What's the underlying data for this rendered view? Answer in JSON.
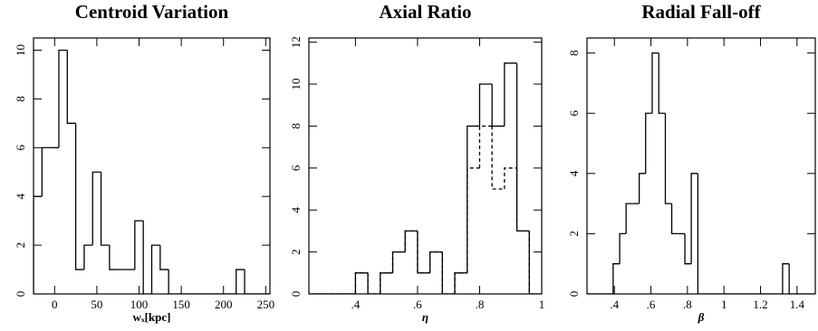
{
  "chart_data": [
    {
      "type": "histogram",
      "title": "Centroid Variation",
      "xlabel": "wₓ[kpc]",
      "xlim": [
        -25,
        255
      ],
      "ylim": [
        0,
        10.5
      ],
      "xticks": [
        0,
        50,
        100,
        150,
        200,
        250
      ],
      "yticks": [
        0,
        2,
        4,
        6,
        8,
        10
      ],
      "bins": [
        -25,
        -15,
        -5,
        5,
        15,
        25,
        35,
        45,
        55,
        65,
        75,
        85,
        95,
        105,
        115,
        125,
        135,
        145,
        155,
        165,
        175,
        185,
        195,
        205,
        215,
        225,
        235,
        245,
        255
      ],
      "series": [
        {
          "color": "#000000",
          "dashed": false,
          "values": [
            4,
            6,
            6,
            10,
            7,
            1,
            2,
            5,
            2,
            1,
            1,
            1,
            3,
            0,
            2,
            1,
            0,
            0,
            0,
            0,
            0,
            0,
            0,
            0,
            1,
            0,
            0,
            0
          ]
        }
      ]
    },
    {
      "type": "histogram",
      "title": "Axial Ratio",
      "xlabel": "η",
      "xlim": [
        0.25,
        1.0
      ],
      "ylim": [
        0,
        12.2
      ],
      "xticks": [
        {
          "value": 0.4,
          "label": ".4"
        },
        {
          "value": 0.6,
          "label": ".6"
        },
        {
          "value": 0.8,
          "label": ".8"
        },
        1
      ],
      "yticks": [
        0,
        2,
        4,
        6,
        8,
        10,
        12
      ],
      "bins": [
        0.24,
        0.28,
        0.32,
        0.36,
        0.4,
        0.44,
        0.48,
        0.52,
        0.56,
        0.6,
        0.64,
        0.68,
        0.72,
        0.76,
        0.8,
        0.84,
        0.88,
        0.92,
        0.96,
        1.0
      ],
      "series": [
        {
          "color": "#000000",
          "dashed": false,
          "values": [
            0,
            0,
            0,
            0,
            1,
            0,
            1,
            2,
            3,
            1,
            2,
            0,
            1,
            8,
            10,
            8,
            11,
            3,
            0
          ]
        },
        {
          "color": "#000000",
          "dashed": true,
          "values": [
            0,
            0,
            0,
            0,
            1,
            0,
            1,
            2,
            3,
            1,
            2,
            0,
            1,
            6,
            8,
            5,
            6,
            3,
            0
          ]
        }
      ]
    },
    {
      "type": "histogram",
      "title": "Radial Fall-off",
      "xlabel": "β",
      "xlim": [
        0.25,
        1.5
      ],
      "ylim": [
        0,
        8.5
      ],
      "xticks": [
        {
          "value": 0.4,
          "label": ".4"
        },
        {
          "value": 0.6,
          "label": ".6"
        },
        {
          "value": 0.8,
          "label": ".8"
        },
        1,
        1.2,
        1.4
      ],
      "yticks": [
        0,
        2,
        4,
        6,
        8
      ],
      "bins": [
        0.25,
        0.286,
        0.321,
        0.357,
        0.393,
        0.429,
        0.464,
        0.5,
        0.536,
        0.571,
        0.607,
        0.643,
        0.679,
        0.714,
        0.75,
        0.786,
        0.821,
        0.857,
        0.893,
        0.929,
        0.964,
        1.0,
        1.036,
        1.071,
        1.107,
        1.143,
        1.179,
        1.214,
        1.25,
        1.286,
        1.321,
        1.357,
        1.393,
        1.429,
        1.464,
        1.5
      ],
      "series": [
        {
          "color": "#000000",
          "dashed": false,
          "values": [
            0,
            0,
            0,
            0,
            1,
            2,
            3,
            3,
            4,
            6,
            8,
            6,
            3,
            2,
            2,
            1,
            4,
            0,
            0,
            0,
            0,
            0,
            0,
            0,
            0,
            0,
            0,
            0,
            0,
            0,
            1,
            0,
            0,
            0,
            0
          ]
        }
      ]
    }
  ]
}
